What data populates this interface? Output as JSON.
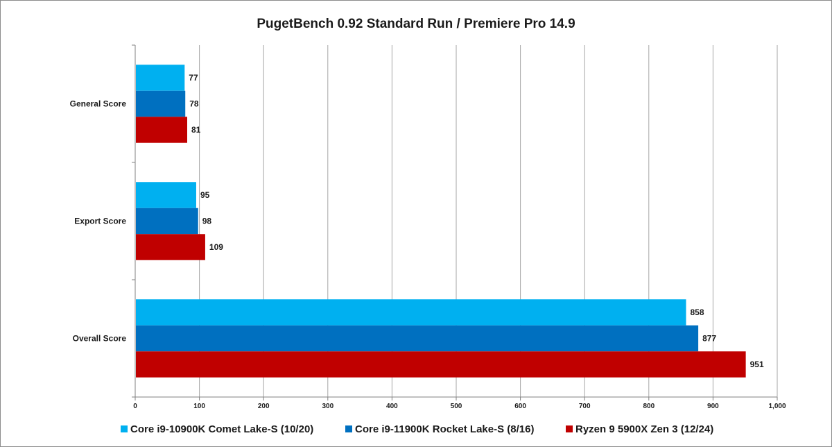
{
  "chart_data": {
    "type": "bar",
    "orientation": "horizontal",
    "title": "PugetBench 0.92 Standard Run / Premiere Pro 14.9",
    "categories": [
      "General Score",
      "Export Score",
      "Overall Score"
    ],
    "series": [
      {
        "name": "Core i9-10900K Comet Lake-S (10/20)",
        "color": "#00b0f0",
        "values": [
          77,
          95,
          858
        ]
      },
      {
        "name": "Core i9-11900K Rocket Lake-S (8/16)",
        "color": "#0070c0",
        "values": [
          78,
          98,
          877
        ]
      },
      {
        "name": "Ryzen 9 5900X Zen 3 (12/24)",
        "color": "#c00000",
        "values": [
          81,
          109,
          951
        ]
      }
    ],
    "xlim": [
      0,
      1000
    ],
    "x_ticks": [
      0,
      100,
      200,
      300,
      400,
      500,
      600,
      700,
      800,
      900,
      1000
    ],
    "x_tick_labels": [
      "0",
      "100",
      "200",
      "300",
      "400",
      "500",
      "600",
      "700",
      "800",
      "900",
      "1,000"
    ],
    "grid": "vertical",
    "legend_position": "bottom"
  }
}
